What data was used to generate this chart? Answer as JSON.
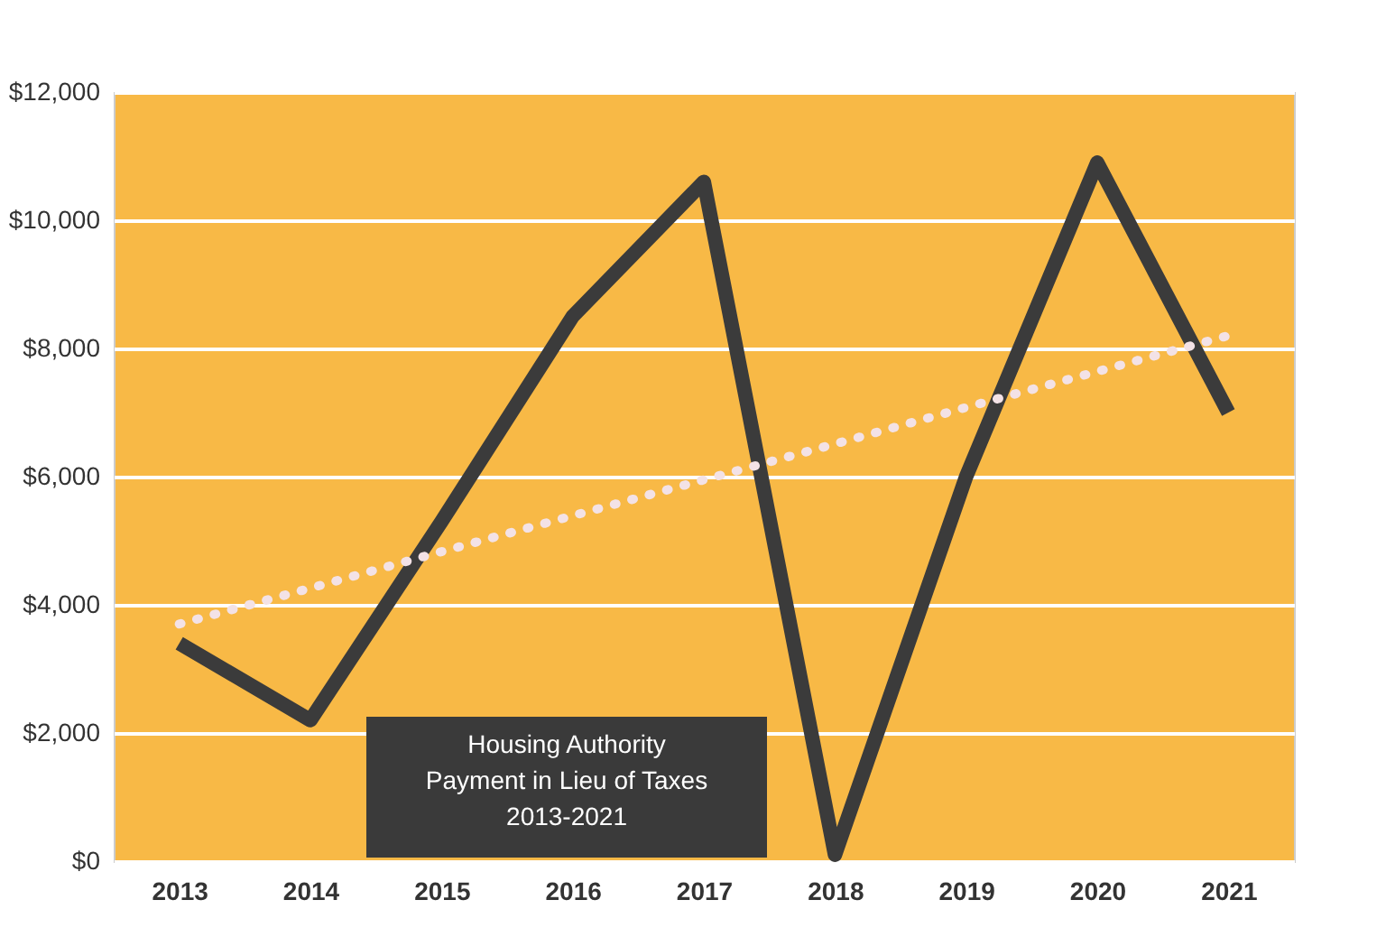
{
  "chart_data": {
    "type": "line",
    "title": "Housing Authority\nPayment in Lieu of Taxes\n2013-2021",
    "categories": [
      "2013",
      "2014",
      "2015",
      "2016",
      "2017",
      "2018",
      "2019",
      "2020",
      "2021"
    ],
    "series": [
      {
        "color": "#3b3b3b",
        "values": [
          3400,
          2200,
          5300,
          8500,
          10600,
          100,
          6000,
          10900,
          7000
        ]
      },
      {
        "type": "line",
        "color": "#f3e2e6",
        "line_style": "dotted",
        "values": [
          3700,
          4260,
          4830,
          5390,
          5950,
          6510,
          7080,
          7640,
          8200
        ]
      }
    ],
    "ylim": [
      0,
      12000
    ],
    "yticks": [
      {
        "value": 0,
        "label": "$0"
      },
      {
        "value": 2000,
        "label": "$2,000"
      },
      {
        "value": 4000,
        "label": "$4,000"
      },
      {
        "value": 6000,
        "label": "$6,000"
      },
      {
        "value": 8000,
        "label": "$8,000"
      },
      {
        "value": 10000,
        "label": "$10,000"
      },
      {
        "value": 12000,
        "label": "$12,000"
      }
    ],
    "grid": "y"
  }
}
